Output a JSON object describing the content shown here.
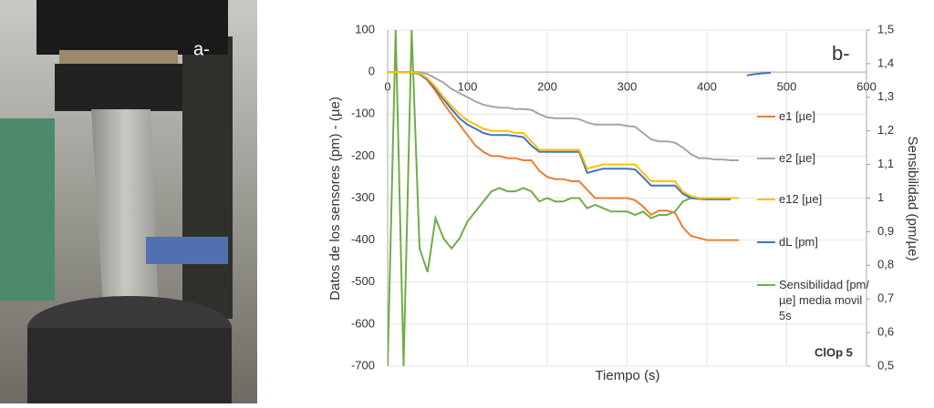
{
  "photo": {
    "label": "a-"
  },
  "chart_data": {
    "type": "line",
    "xlabel": "Tiempo (s)",
    "ylabel": "Datos de los sensores (pm) - (µe)",
    "y2label": "Sensibilidad (pm/µe)",
    "annotations": [
      "b-",
      "ClOp 5"
    ],
    "x": [
      0,
      10,
      20,
      30,
      40,
      50,
      60,
      70,
      80,
      90,
      100,
      110,
      120,
      130,
      140,
      150,
      160,
      170,
      180,
      190,
      200,
      210,
      220,
      230,
      240,
      250,
      260,
      270,
      280,
      290,
      300,
      310,
      320,
      330,
      340,
      350,
      360,
      370,
      380,
      390,
      400,
      410,
      420,
      430,
      440,
      450,
      460,
      470,
      480
    ],
    "xlim": [
      0,
      600
    ],
    "xticks": [
      0,
      100,
      200,
      300,
      400,
      500,
      600
    ],
    "ylim": [
      -700,
      100
    ],
    "yticks": [
      100,
      0,
      -100,
      -200,
      -300,
      -400,
      -500,
      -600,
      -700
    ],
    "y2lim": [
      0.5,
      1.5
    ],
    "y2ticks": [
      {
        "value": 1.5,
        "label": "1,5"
      },
      {
        "value": 1.4,
        "label": "1,4"
      },
      {
        "value": 1.3,
        "label": "1,3"
      },
      {
        "value": 1.2,
        "label": "1,2"
      },
      {
        "value": 1.1,
        "label": "1,1"
      },
      {
        "value": 1,
        "label": "1"
      },
      {
        "value": 0.9,
        "label": "0,9"
      },
      {
        "value": 0.8,
        "label": "0,8"
      },
      {
        "value": 0.7,
        "label": "0,7"
      },
      {
        "value": 0.6,
        "label": "0,6"
      },
      {
        "value": 0.5,
        "label": "0,5"
      }
    ],
    "grid": true,
    "series": [
      {
        "name": "e1 [µe]",
        "color": "#ed7d31",
        "values": [
          0,
          0,
          0,
          0,
          -5,
          -20,
          -45,
          -75,
          -100,
          -125,
          -150,
          -175,
          -190,
          -200,
          -200,
          -205,
          -205,
          -210,
          -210,
          -235,
          -250,
          -255,
          -255,
          -260,
          -260,
          -280,
          -300,
          -300,
          -300,
          -300,
          -300,
          -305,
          -320,
          -340,
          -330,
          -330,
          -335,
          -370,
          -390,
          -395,
          -400,
          -400,
          -400,
          -400,
          -400,
          null,
          null,
          null,
          null
        ]
      },
      {
        "name": "e2 [µe]",
        "color": "#a5a5a5",
        "values": [
          0,
          0,
          0,
          0,
          0,
          -5,
          -15,
          -25,
          -40,
          -50,
          -60,
          -70,
          -78,
          -82,
          -85,
          -85,
          -88,
          -88,
          -90,
          -100,
          -108,
          -110,
          -110,
          -110,
          -112,
          -120,
          -125,
          -125,
          -125,
          -125,
          -128,
          -130,
          -145,
          -160,
          -165,
          -165,
          -168,
          -180,
          -195,
          -205,
          -205,
          -208,
          -208,
          -210,
          -210,
          null,
          null,
          null,
          null
        ]
      },
      {
        "name": "e12 [µe]",
        "color": "#ffc000",
        "values": [
          0,
          0,
          0,
          0,
          -3,
          -15,
          -35,
          -60,
          -80,
          -100,
          -115,
          -125,
          -135,
          -140,
          -140,
          -140,
          -145,
          -145,
          -165,
          -185,
          -185,
          -185,
          -185,
          -185,
          -185,
          -230,
          -225,
          -220,
          -220,
          -220,
          -220,
          -220,
          -240,
          -260,
          -260,
          -260,
          -260,
          -285,
          -295,
          -300,
          -300,
          -300,
          -300,
          -300,
          -300,
          null,
          null,
          null,
          null
        ]
      },
      {
        "name": "dL [pm]",
        "color": "#4472c4",
        "values": [
          0,
          0,
          0,
          0,
          -5,
          -18,
          -40,
          -65,
          -88,
          -110,
          -125,
          -135,
          -145,
          -150,
          -150,
          -150,
          -152,
          -155,
          -175,
          -190,
          -190,
          -190,
          -190,
          -190,
          -190,
          -240,
          -235,
          -230,
          -230,
          -230,
          -230,
          -232,
          -250,
          -270,
          -270,
          -270,
          -270,
          -290,
          -300,
          -302,
          -303,
          -303,
          -303,
          -303,
          null,
          -8,
          -5,
          -3,
          -2
        ]
      },
      {
        "name": "Sensibilidad [pm/µe] media movil 5s",
        "color": "#70ad47",
        "axis": "y2",
        "values": [
          0.5,
          1.5,
          0.5,
          1.5,
          0.85,
          0.78,
          0.94,
          0.88,
          0.85,
          0.88,
          0.93,
          0.96,
          0.99,
          1.02,
          1.03,
          1.02,
          1.02,
          1.03,
          1.02,
          0.99,
          1.0,
          0.99,
          0.99,
          1.0,
          1.0,
          0.97,
          0.98,
          0.97,
          0.96,
          0.96,
          0.96,
          0.95,
          0.96,
          0.94,
          0.95,
          0.95,
          0.96,
          0.99,
          1.0,
          1.0,
          1.0,
          1.0,
          1.0,
          1.0,
          1.0,
          null,
          null,
          null,
          null
        ]
      }
    ]
  }
}
